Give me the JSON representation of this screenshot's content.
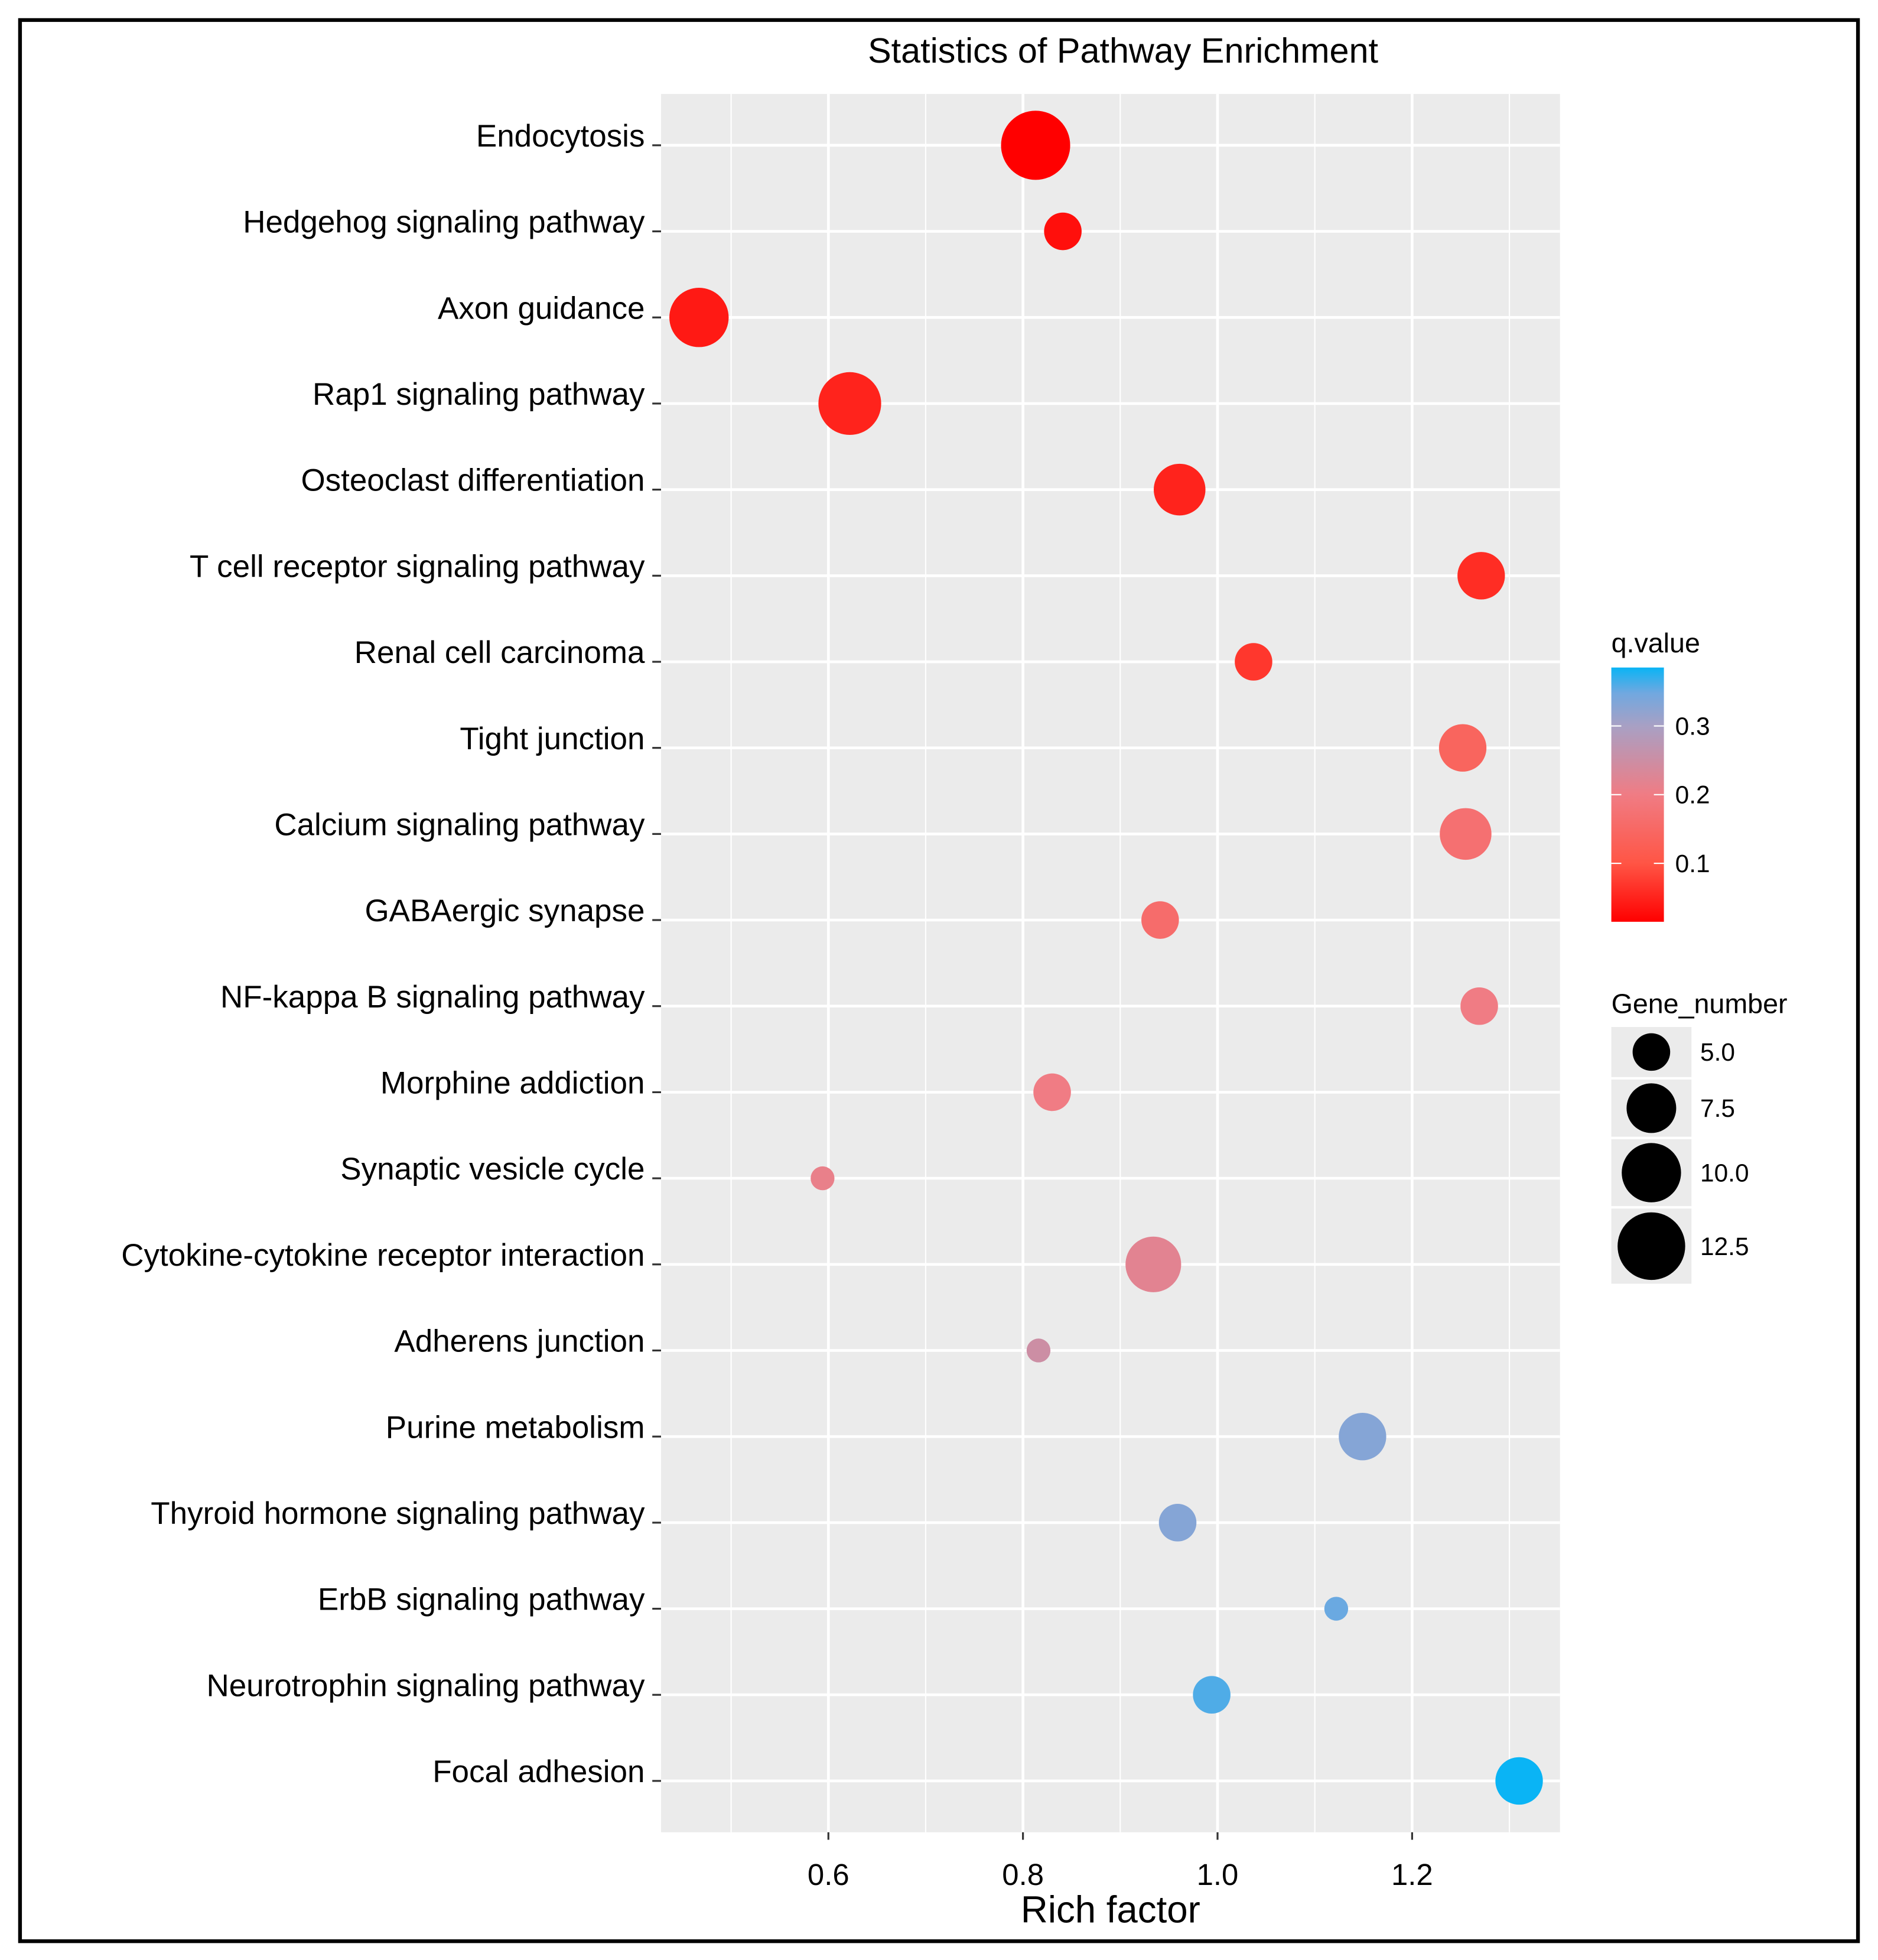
{
  "chart_data": {
    "type": "scatter",
    "title": "Statistics of Pathway Enrichment",
    "xlabel": "Rich factor",
    "ylabel": "",
    "xlim": [
      0.428,
      1.352
    ],
    "xticks": [
      0.6,
      0.8,
      1.0,
      1.2
    ],
    "xtick_labels": [
      "0.6",
      "0.8",
      "1.0",
      "1.2"
    ],
    "grid": true,
    "pathways": [
      {
        "name": "Endocytosis",
        "rich_factor": 0.813,
        "gene_number": 13,
        "q_value": 0.015
      },
      {
        "name": "Hedgehog signaling pathway",
        "rich_factor": 0.841,
        "gene_number": 5,
        "q_value": 0.03
      },
      {
        "name": "Axon guidance",
        "rich_factor": 0.467,
        "gene_number": 10,
        "q_value": 0.04
      },
      {
        "name": "Rap1 signaling pathway",
        "rich_factor": 0.622,
        "gene_number": 11,
        "q_value": 0.05
      },
      {
        "name": "Osteoclast differentiation",
        "rich_factor": 0.961,
        "gene_number": 8,
        "q_value": 0.05
      },
      {
        "name": "T cell receptor signaling pathway",
        "rich_factor": 1.271,
        "gene_number": 7,
        "q_value": 0.06
      },
      {
        "name": "Renal cell carcinoma",
        "rich_factor": 1.037,
        "gene_number": 5,
        "q_value": 0.07
      },
      {
        "name": "Tight junction",
        "rich_factor": 1.252,
        "gene_number": 7,
        "q_value": 0.14
      },
      {
        "name": "Calcium signaling pathway",
        "rich_factor": 1.255,
        "gene_number": 8,
        "q_value": 0.17
      },
      {
        "name": "GABAergic synapse",
        "rich_factor": 0.941,
        "gene_number": 5,
        "q_value": 0.16
      },
      {
        "name": "NF-kappa B signaling pathway",
        "rich_factor": 1.269,
        "gene_number": 5,
        "q_value": 0.2
      },
      {
        "name": "Morphine addiction",
        "rich_factor": 0.83,
        "gene_number": 5,
        "q_value": 0.2
      },
      {
        "name": "Synaptic vesicle cycle",
        "rich_factor": 0.594,
        "gene_number": 3,
        "q_value": 0.21
      },
      {
        "name": "Cytokine-cytokine receptor interaction",
        "rich_factor": 0.934,
        "gene_number": 9,
        "q_value": 0.22
      },
      {
        "name": "Adherens junction",
        "rich_factor": 0.816,
        "gene_number": 3,
        "q_value": 0.25
      },
      {
        "name": "Purine metabolism",
        "rich_factor": 1.149,
        "gene_number": 7,
        "q_value": 0.33
      },
      {
        "name": "Thyroid hormone signaling pathway",
        "rich_factor": 0.959,
        "gene_number": 5,
        "q_value": 0.33
      },
      {
        "name": "ErbB signaling pathway",
        "rich_factor": 1.122,
        "gene_number": 3,
        "q_value": 0.35
      },
      {
        "name": "Neurotrophin signaling pathway",
        "rich_factor": 0.994,
        "gene_number": 5,
        "q_value": 0.36
      },
      {
        "name": "Focal adhesion",
        "rich_factor": 1.31,
        "gene_number": 7,
        "q_value": 0.385
      }
    ],
    "color_legend": {
      "title": "q.value",
      "range": [
        0.015,
        0.385
      ],
      "ticks": [
        0.1,
        0.2,
        0.3
      ],
      "tick_labels": [
        "0.1",
        "0.2",
        "0.3"
      ],
      "low_color": "#FF0000",
      "high_color": "#0AB4F5",
      "placement": "right"
    },
    "size_legend": {
      "title": "Gene_number",
      "values": [
        5.0,
        7.5,
        10.0,
        12.5
      ],
      "labels": [
        "5.0",
        "7.5",
        "10.0",
        "12.5"
      ],
      "placement": "right"
    }
  }
}
